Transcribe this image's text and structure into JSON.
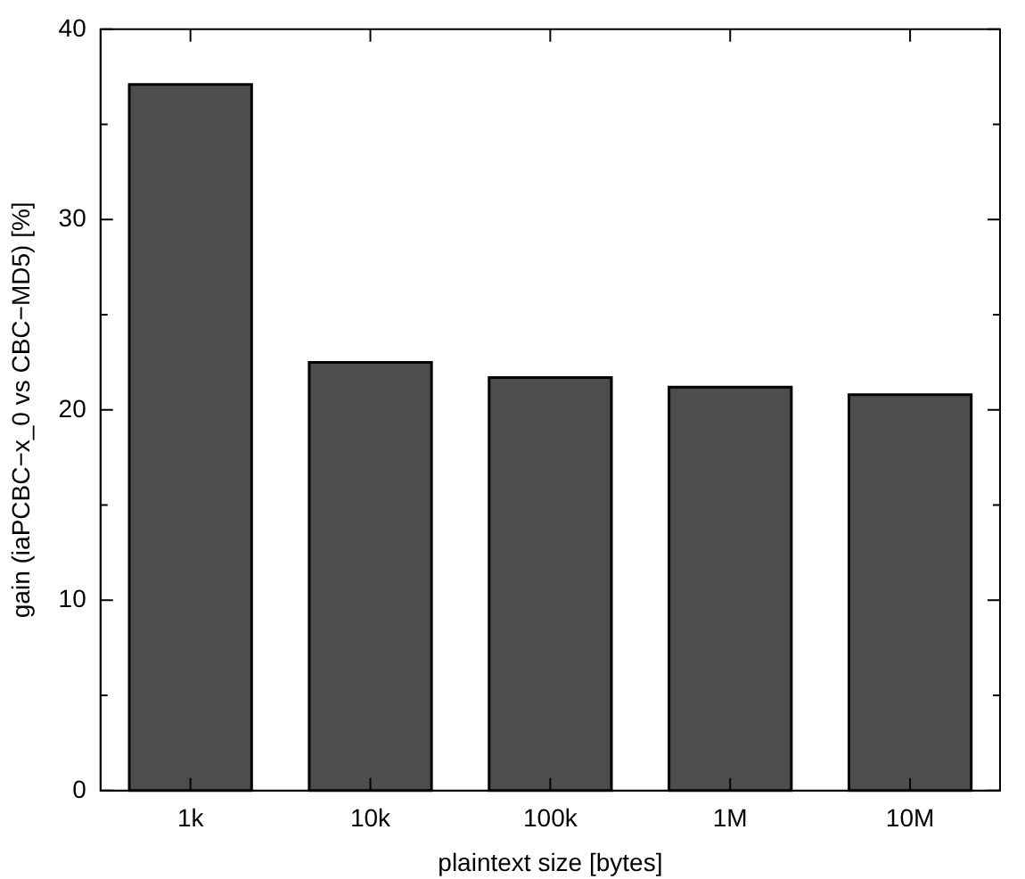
{
  "chart_data": {
    "type": "bar",
    "xlabel": "plaintext size [bytes]",
    "ylabel": "gain (iaPCBC−x_0 vs CBC−MD5) [%]",
    "categories": [
      "1k",
      "10k",
      "100k",
      "1M",
      "10M"
    ],
    "values": [
      37.1,
      22.5,
      21.7,
      21.2,
      20.8
    ],
    "color": "#4d4d4d",
    "ylim": [
      0,
      40
    ],
    "yticks": [
      0,
      {
        "value": 5,
        "label": null
      },
      10,
      {
        "value": 15,
        "label": null
      },
      20,
      {
        "value": 25,
        "label": null
      },
      30,
      {
        "value": 35,
        "label": null
      },
      40
    ],
    "grid": false,
    "legend": false
  }
}
